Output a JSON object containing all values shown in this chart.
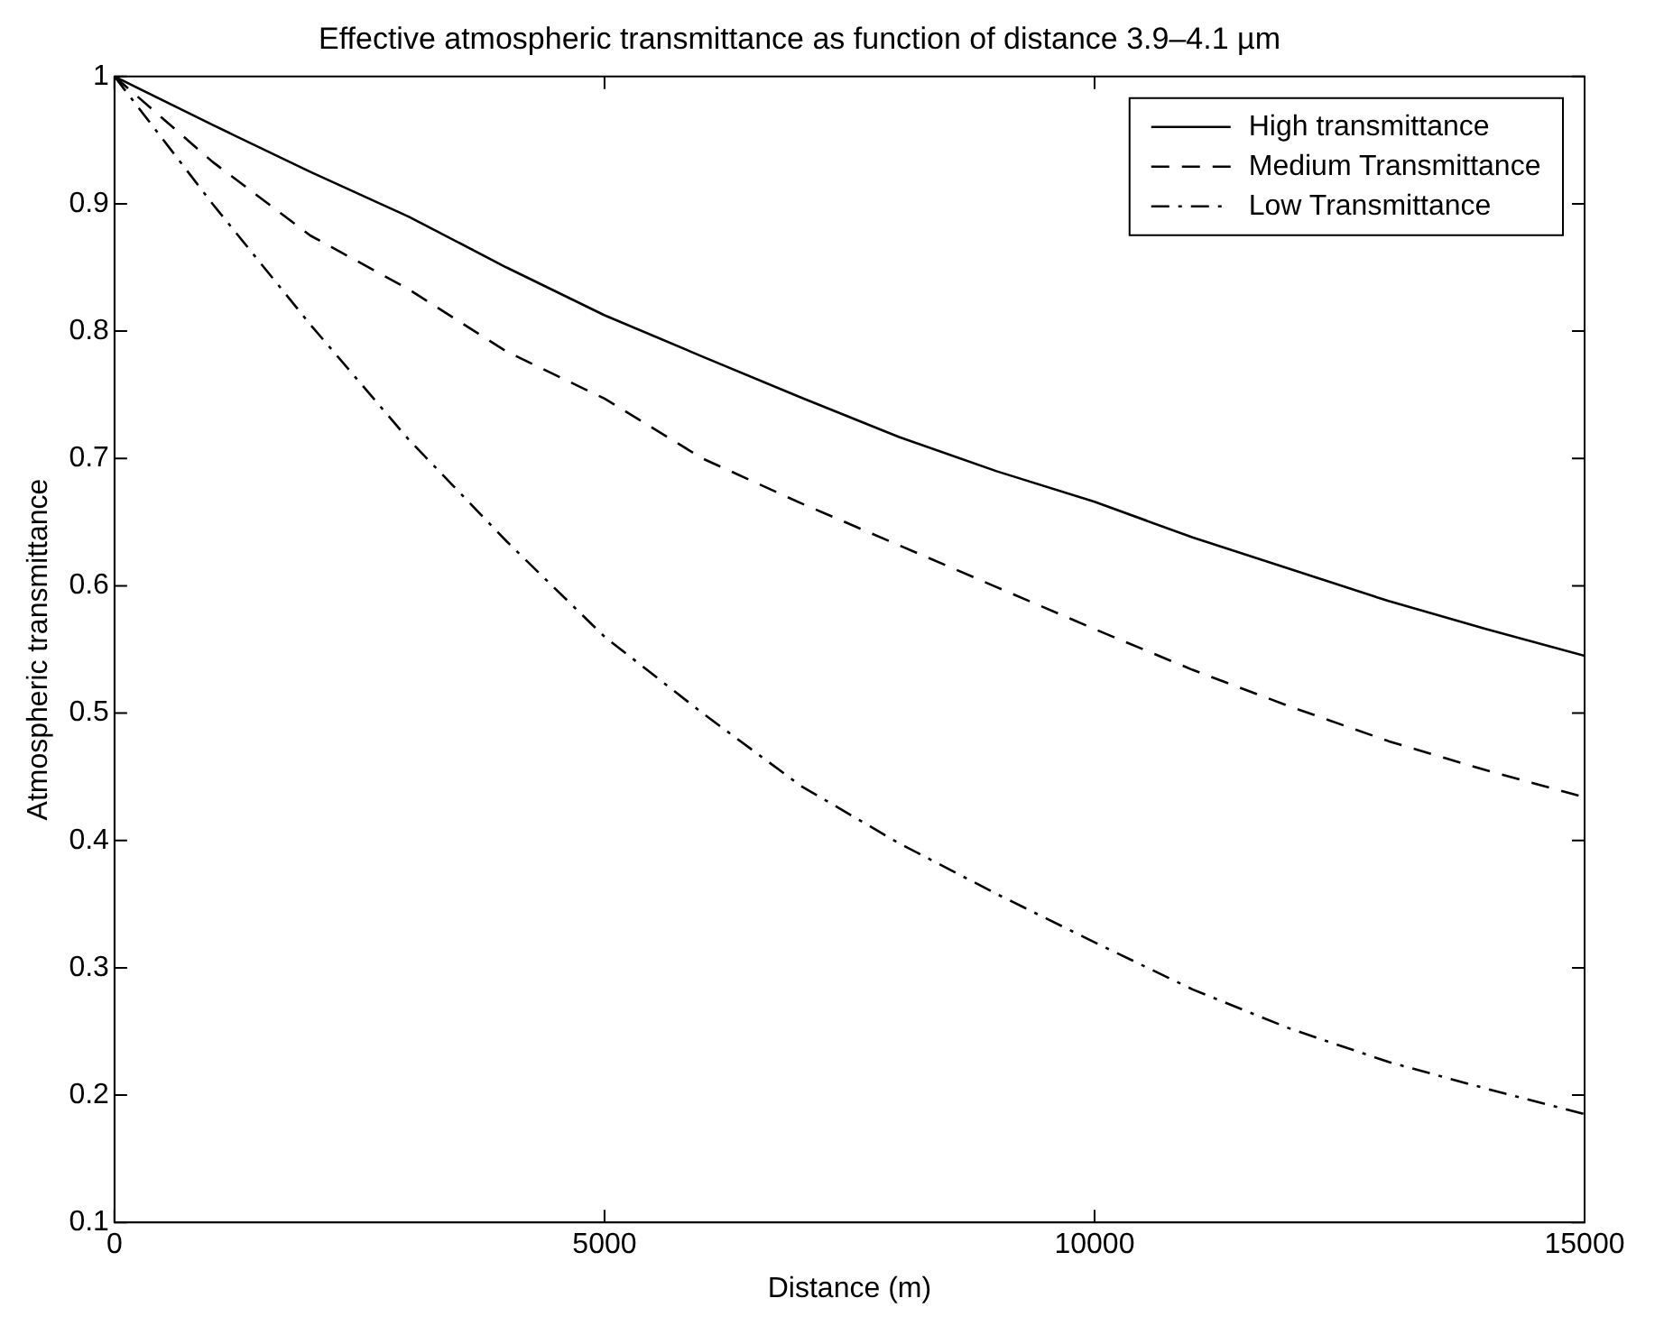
{
  "chart_data": {
    "type": "line",
    "title": "Effective atmospheric transmittance as function of distance 3.9–4.1 µm",
    "xlabel": "Distance (m)",
    "ylabel": "Atmospheric transmittance",
    "x": [
      0,
      1000,
      2000,
      3000,
      4000,
      5000,
      6000,
      7000,
      8000,
      9000,
      10000,
      11000,
      12000,
      13000,
      14000,
      15000
    ],
    "series": [
      {
        "name": "High transmittance",
        "color": "#000000",
        "line_style": "solid",
        "values": [
          1,
          0.962,
          0.925,
          0.89,
          0.85,
          0.8125,
          0.78,
          0.748,
          0.717,
          0.69,
          0.666,
          0.638,
          0.613,
          0.588,
          0.566,
          0.545
        ]
      },
      {
        "name": "Medium Transmittance",
        "color": "#000000",
        "line_style": "dashed",
        "values": [
          1,
          0.933,
          0.875,
          0.833,
          0.784,
          0.747,
          0.7,
          0.665,
          0.632,
          0.599,
          0.566,
          0.534,
          0.505,
          0.478,
          0.455,
          0.434
        ]
      },
      {
        "name": "Low Transmittance",
        "color": "#000000",
        "line_style": "dashdot",
        "values": [
          1,
          0.9,
          0.805,
          0.715,
          0.635,
          0.56,
          0.5,
          0.443,
          0.398,
          0.358,
          0.32,
          0.283,
          0.252,
          0.226,
          0.205,
          0.185
        ]
      }
    ],
    "xlim": [
      0,
      15000
    ],
    "xticks": [
      0,
      5000,
      10000,
      15000
    ],
    "ylim": [
      0.1,
      1
    ],
    "yticks": [
      0.1,
      0.2,
      0.3,
      0.4,
      0.5,
      0.6,
      0.7,
      0.8,
      0.9,
      1
    ],
    "legend": "top right",
    "marker": "none"
  }
}
